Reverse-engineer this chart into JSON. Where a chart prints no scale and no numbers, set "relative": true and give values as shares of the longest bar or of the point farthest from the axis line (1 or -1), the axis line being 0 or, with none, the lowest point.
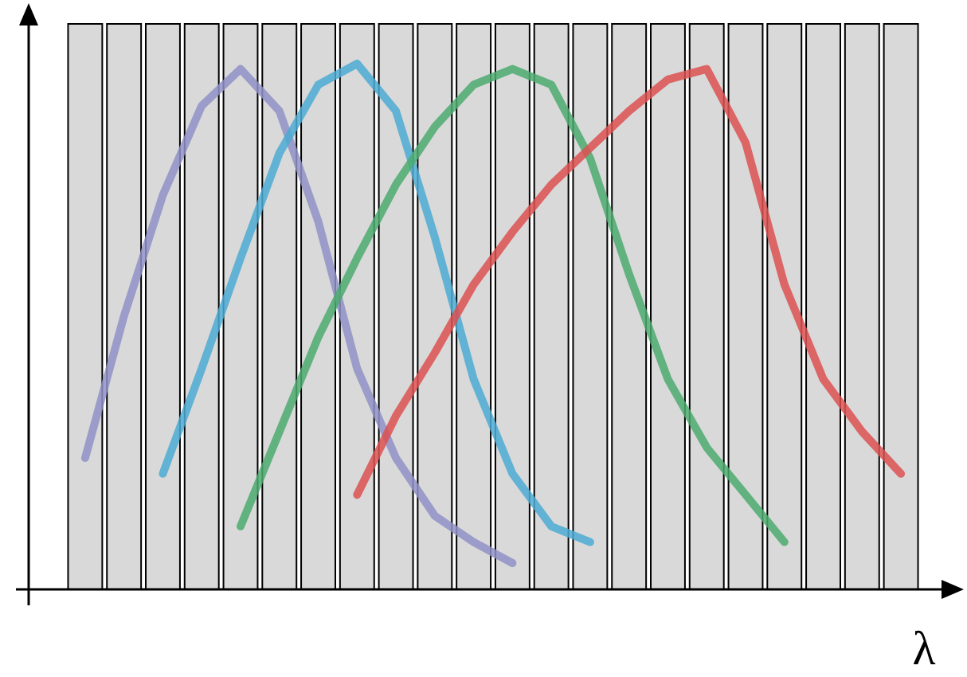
{
  "chart_data": [
    {
      "type": "bar",
      "relative": true,
      "xlabel": "λ",
      "color": "#d9d9d9",
      "categories": [
        null,
        null,
        null,
        null,
        null,
        null,
        null,
        null,
        null,
        null,
        null,
        null,
        null,
        null,
        null,
        null,
        null,
        null,
        null,
        null,
        null,
        null
      ],
      "values": [
        1,
        1,
        1,
        1,
        1,
        1,
        1,
        1,
        1,
        1,
        1,
        1,
        1,
        1,
        1,
        1,
        1,
        1,
        1,
        1,
        1,
        1
      ]
    },
    {
      "type": "line",
      "relative": true,
      "categories": [
        null,
        null,
        null,
        null,
        null,
        null,
        null,
        null,
        null,
        null,
        null,
        null,
        null,
        null,
        null,
        null,
        null,
        null,
        null,
        null,
        null,
        null
      ],
      "series": [
        {
          "color": "#9191c8",
          "values": [
            0.25,
            0.52,
            0.75,
            0.92,
            0.99,
            0.91,
            0.7,
            0.42,
            0.25,
            0.14,
            0.09,
            0.05,
            null,
            null,
            null,
            null,
            null,
            null,
            null,
            null,
            null,
            null
          ]
        },
        {
          "color": "#4baad2",
          "values": [
            null,
            null,
            0.22,
            0.42,
            0.63,
            0.83,
            0.96,
            1,
            0.91,
            0.67,
            0.4,
            0.22,
            0.12,
            0.09,
            null,
            null,
            null,
            null,
            null,
            null,
            null,
            null
          ]
        },
        {
          "color": "#4baa6e",
          "values": [
            null,
            null,
            null,
            null,
            0.12,
            0.3,
            0.48,
            0.63,
            0.77,
            0.88,
            0.96,
            0.99,
            0.96,
            0.82,
            0.6,
            0.4,
            0.27,
            0.18,
            0.09,
            null,
            null,
            null
          ]
        },
        {
          "color": "#dc5050",
          "values": [
            null,
            null,
            null,
            null,
            null,
            null,
            null,
            0.18,
            0.33,
            0.45,
            0.58,
            0.68,
            0.77,
            0.84,
            0.91,
            0.97,
            0.99,
            0.85,
            0.58,
            0.4,
            0.3,
            0.22
          ]
        }
      ]
    }
  ]
}
